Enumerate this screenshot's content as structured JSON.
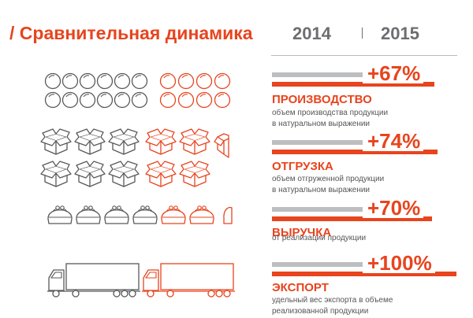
{
  "header": {
    "title": "/ Сравнительная динамика",
    "year_prev": "2014",
    "year_curr": "2015"
  },
  "colors": {
    "accent": "#e8441e",
    "gray_bar": "#bcbec0",
    "icon_gray": "#58595b",
    "text_gray": "#6d6e71"
  },
  "rows": [
    {
      "key": "production",
      "icon": "ball-icon",
      "percent": "+67%",
      "title": "ПРОИЗВОДСТВО",
      "desc_line1": "объем производства продукции",
      "desc_line2": "в натуральном выражении",
      "gray_icons": 12,
      "orange_icons": 8
    },
    {
      "key": "shipment",
      "icon": "box-icon",
      "percent": "+74%",
      "title": "ОТГРУЗКА",
      "desc_line1": "объем отгруженной продукции",
      "desc_line2": "в натуральном выражении",
      "gray_icons": 6,
      "orange_icons": 5
    },
    {
      "key": "revenue",
      "icon": "purse-icon",
      "percent": "+70%",
      "title": "ВЫРУЧКА",
      "desc_line1": "от реализации продукции",
      "desc_line2": "",
      "gray_icons": 4,
      "orange_icons": 3
    },
    {
      "key": "export",
      "icon": "truck-icon",
      "percent": "+100%",
      "title": "ЭКСПОРТ",
      "desc_line1": "удельный вес экспорта в объеме",
      "desc_line2": "реализованной продукции",
      "gray_icons": 1,
      "orange_icons": 1
    }
  ]
}
